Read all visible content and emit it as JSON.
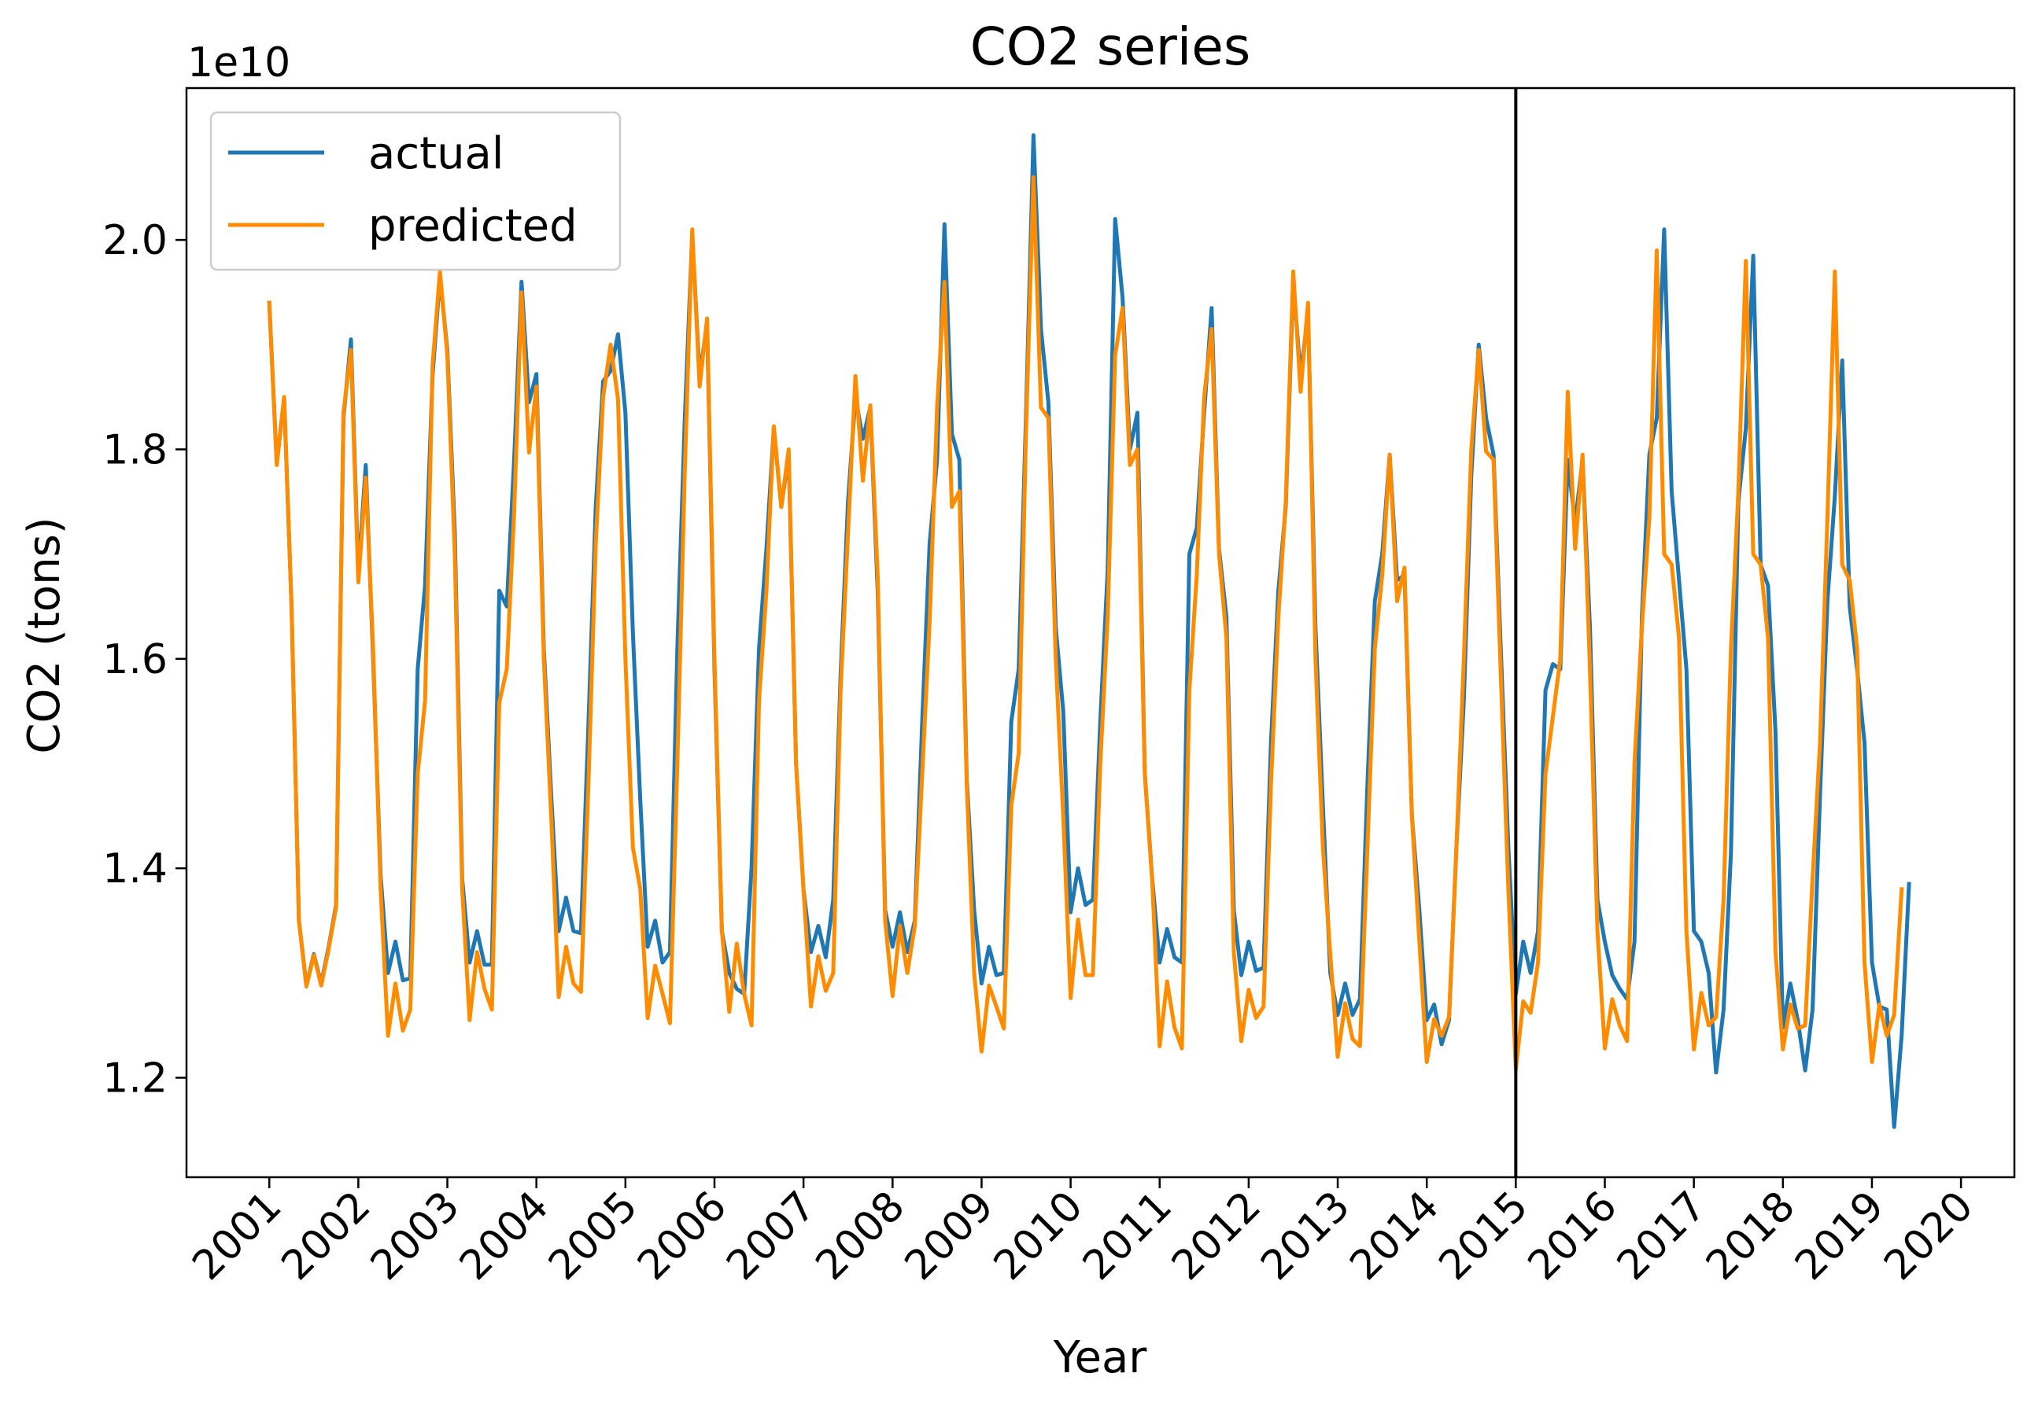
{
  "chart_data": {
    "type": "line",
    "title": "CO2 series",
    "xlabel": "Year",
    "ylabel": "CO2 (tons)",
    "y_offset_label": "1e10",
    "xlim": [
      2000.07,
      2020.6
    ],
    "ylim": [
      11050000000.0,
      21450000000.0
    ],
    "xticks": [
      2001,
      2002,
      2003,
      2004,
      2005,
      2006,
      2007,
      2008,
      2009,
      2010,
      2011,
      2012,
      2013,
      2014,
      2015,
      2016,
      2017,
      2018,
      2019,
      2020
    ],
    "xtick_labels": [
      "2001",
      "2002",
      "2003",
      "2004",
      "2005",
      "2006",
      "2007",
      "2008",
      "2009",
      "2010",
      "2011",
      "2012",
      "2013",
      "2014",
      "2015",
      "2016",
      "2017",
      "2018",
      "2019",
      "2020"
    ],
    "yticks": [
      12000000000.0,
      14000000000.0,
      16000000000.0,
      18000000000.0,
      20000000000.0
    ],
    "ytick_labels": [
      "1.2",
      "1.4",
      "1.6",
      "1.8",
      "2.0"
    ],
    "vline_x": 2015.0,
    "legend_position": "upper-left",
    "grid": false,
    "series": [
      {
        "name": "actual",
        "color": "#1f77b4",
        "values": [
          19400000000.0,
          17870000000.0,
          18490000000.0,
          16500000000.0,
          13500000000.0,
          12880000000.0,
          13180000000.0,
          12900000000.0,
          13250000000.0,
          13650000000.0,
          18300000000.0,
          19050000000.0,
          16800000000.0,
          17850000000.0,
          16000000000.0,
          13930000000.0,
          13000000000.0,
          13300000000.0,
          12930000000.0,
          12950000000.0,
          15900000000.0,
          16700000000.0,
          18700000000.0,
          19650000000.0,
          18950000000.0,
          17200000000.0,
          13900000000.0,
          13100000000.0,
          13400000000.0,
          13080000000.0,
          13080000000.0,
          16650000000.0,
          16500000000.0,
          17900000000.0,
          19600000000.0,
          18450000000.0,
          18720000000.0,
          16100000000.0,
          14700000000.0,
          13400000000.0,
          13720000000.0,
          13400000000.0,
          13380000000.0,
          15350000000.0,
          17450000000.0,
          18650000000.0,
          18750000000.0,
          19100000000.0,
          18350000000.0,
          16250000000.0,
          14650000000.0,
          13250000000.0,
          13500000000.0,
          13100000000.0,
          13200000000.0,
          16100000000.0,
          18300000000.0,
          20050000000.0,
          18700000000.0,
          19200000000.0,
          15900000000.0,
          13400000000.0,
          13000000000.0,
          12850000000.0,
          12800000000.0,
          14000000000.0,
          16100000000.0,
          17050000000.0,
          18200000000.0,
          17450000000.0,
          17950000000.0,
          15000000000.0,
          13800000000.0,
          13200000000.0,
          13450000000.0,
          13150000000.0,
          13700000000.0,
          15850000000.0,
          17500000000.0,
          18500000000.0,
          18100000000.0,
          18400000000.0,
          16650000000.0,
          13600000000.0,
          13250000000.0,
          13580000000.0,
          13200000000.0,
          13500000000.0,
          15400000000.0,
          17100000000.0,
          17900000000.0,
          20150000000.0,
          18150000000.0,
          17900000000.0,
          14850000000.0,
          13600000000.0,
          12900000000.0,
          13250000000.0,
          12980000000.0,
          13000000000.0,
          15400000000.0,
          15900000000.0,
          18350000000.0,
          21000000000.0,
          19150000000.0,
          18450000000.0,
          16300000000.0,
          15500000000.0,
          13580000000.0,
          14000000000.0,
          13650000000.0,
          13700000000.0,
          15400000000.0,
          16850000000.0,
          20200000000.0,
          19450000000.0,
          18000000000.0,
          18350000000.0,
          14900000000.0,
          13900000000.0,
          13100000000.0,
          13420000000.0,
          13150000000.0,
          13100000000.0,
          17000000000.0,
          17250000000.0,
          18350000000.0,
          19350000000.0,
          17050000000.0,
          16400000000.0,
          13600000000.0,
          12980000000.0,
          13300000000.0,
          13020000000.0,
          13050000000.0,
          15200000000.0,
          16650000000.0,
          17450000000.0,
          19600000000.0,
          18700000000.0,
          19300000000.0,
          16300000000.0,
          14600000000.0,
          13000000000.0,
          12600000000.0,
          12900000000.0,
          12600000000.0,
          12750000000.0,
          14800000000.0,
          16550000000.0,
          17000000000.0,
          17950000000.0,
          16750000000.0,
          16800000000.0,
          14500000000.0,
          13600000000.0,
          12550000000.0,
          12700000000.0,
          12320000000.0,
          12550000000.0,
          14200000000.0,
          15600000000.0,
          17750000000.0,
          19000000000.0,
          18300000000.0,
          17950000000.0,
          16050000000.0,
          14200000000.0,
          12800000000.0,
          13300000000.0,
          13000000000.0,
          13400000000.0,
          15700000000.0,
          15950000000.0,
          15900000000.0,
          17900000000.0,
          17300000000.0,
          17900000000.0,
          16300000000.0,
          13700000000.0,
          13300000000.0,
          12980000000.0,
          12850000000.0,
          12750000000.0,
          13300000000.0,
          16400000000.0,
          17950000000.0,
          18300000000.0,
          20100000000.0,
          17600000000.0,
          16750000000.0,
          15900000000.0,
          13400000000.0,
          13300000000.0,
          13000000000.0,
          12050000000.0,
          12650000000.0,
          14150000000.0,
          17500000000.0,
          18200000000.0,
          19850000000.0,
          16900000000.0,
          16700000000.0,
          15300000000.0,
          12480000000.0,
          12900000000.0,
          12550000000.0,
          12070000000.0,
          12650000000.0,
          14700000000.0,
          16550000000.0,
          17550000000.0,
          18850000000.0,
          16500000000.0,
          15900000000.0,
          15200000000.0,
          13100000000.0,
          12680000000.0,
          12650000000.0,
          11530000000.0,
          12400000000.0,
          13850000000.0
        ]
      },
      {
        "name": "predicted",
        "color": "#ff8c00",
        "values": [
          19400000000.0,
          17850000000.0,
          18500000000.0,
          16500000000.0,
          13500000000.0,
          12870000000.0,
          13170000000.0,
          12880000000.0,
          13230000000.0,
          13630000000.0,
          18350000000.0,
          18950000000.0,
          16730000000.0,
          17730000000.0,
          16100000000.0,
          13800000000.0,
          12400000000.0,
          12900000000.0,
          12450000000.0,
          12650000000.0,
          14900000000.0,
          15600000000.0,
          18800000000.0,
          19700000000.0,
          18900000000.0,
          17000000000.0,
          13800000000.0,
          12550000000.0,
          13200000000.0,
          12850000000.0,
          12650000000.0,
          15580000000.0,
          15900000000.0,
          17400000000.0,
          19500000000.0,
          17970000000.0,
          18600000000.0,
          16000000000.0,
          14500000000.0,
          12770000000.0,
          13250000000.0,
          12900000000.0,
          12820000000.0,
          14780000000.0,
          17100000000.0,
          18500000000.0,
          19000000000.0,
          18480000000.0,
          16000000000.0,
          14200000000.0,
          13800000000.0,
          12570000000.0,
          13070000000.0,
          12800000000.0,
          12520000000.0,
          15000000000.0,
          17800000000.0,
          20100000000.0,
          18600000000.0,
          19250000000.0,
          16000000000.0,
          13400000000.0,
          12630000000.0,
          13280000000.0,
          12800000000.0,
          12500000000.0,
          15600000000.0,
          16650000000.0,
          18220000000.0,
          17450000000.0,
          18000000000.0,
          15000000000.0,
          13800000000.0,
          12680000000.0,
          13160000000.0,
          12830000000.0,
          13000000000.0,
          15700000000.0,
          17200000000.0,
          18700000000.0,
          17700000000.0,
          18420000000.0,
          16800000000.0,
          13500000000.0,
          12780000000.0,
          13450000000.0,
          13000000000.0,
          13450000000.0,
          14900000000.0,
          16350000000.0,
          18400000000.0,
          19600000000.0,
          17450000000.0,
          17600000000.0,
          14800000000.0,
          13000000000.0,
          12250000000.0,
          12880000000.0,
          12680000000.0,
          12470000000.0,
          14600000000.0,
          15100000000.0,
          18200000000.0,
          20600000000.0,
          18400000000.0,
          18300000000.0,
          16000000000.0,
          14500000000.0,
          12760000000.0,
          13510000000.0,
          12980000000.0,
          12980000000.0,
          15000000000.0,
          16400000000.0,
          18900000000.0,
          19350000000.0,
          17850000000.0,
          18000000000.0,
          14900000000.0,
          13880000000.0,
          12300000000.0,
          12920000000.0,
          12480000000.0,
          12280000000.0,
          15700000000.0,
          16800000000.0,
          18500000000.0,
          19150000000.0,
          17000000000.0,
          16200000000.0,
          13200000000.0,
          12350000000.0,
          12840000000.0,
          12570000000.0,
          12680000000.0,
          14800000000.0,
          16400000000.0,
          17500000000.0,
          19700000000.0,
          18550000000.0,
          19400000000.0,
          16000000000.0,
          14200000000.0,
          13180000000.0,
          12200000000.0,
          12710000000.0,
          12370000000.0,
          12300000000.0,
          14200000000.0,
          16100000000.0,
          16800000000.0,
          17950000000.0,
          16550000000.0,
          16870000000.0,
          14500000000.0,
          13300000000.0,
          12150000000.0,
          12560000000.0,
          12400000000.0,
          12580000000.0,
          14200000000.0,
          16000000000.0,
          18000000000.0,
          18950000000.0,
          17980000000.0,
          17900000000.0,
          15800000000.0,
          13800000000.0,
          12080000000.0,
          12730000000.0,
          12620000000.0,
          13100000000.0,
          14900000000.0,
          15450000000.0,
          16000000000.0,
          18550000000.0,
          17050000000.0,
          17950000000.0,
          15900000000.0,
          13400000000.0,
          12280000000.0,
          12750000000.0,
          12500000000.0,
          12350000000.0,
          15000000000.0,
          16300000000.0,
          17350000000.0,
          19900000000.0,
          17000000000.0,
          16900000000.0,
          16200000000.0,
          13400000000.0,
          12270000000.0,
          12810000000.0,
          12500000000.0,
          12580000000.0,
          13700000000.0,
          16100000000.0,
          17600000000.0,
          19800000000.0,
          17000000000.0,
          16900000000.0,
          16200000000.0,
          13200000000.0,
          12270000000.0,
          12700000000.0,
          12470000000.0,
          12500000000.0,
          13900000000.0,
          15200000000.0,
          17350000000.0,
          19700000000.0,
          16900000000.0,
          16750000000.0,
          16100000000.0,
          13100000000.0,
          12150000000.0,
          12700000000.0,
          12400000000.0,
          12600000000.0,
          13800000000.0
        ]
      }
    ]
  }
}
